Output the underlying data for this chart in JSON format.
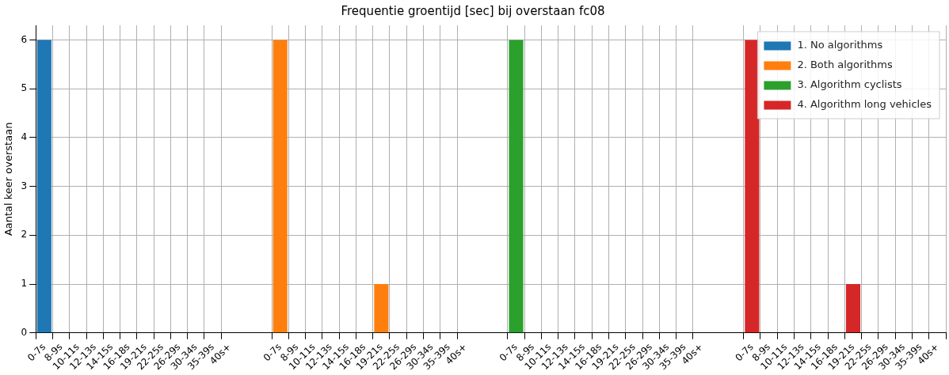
{
  "chart_data": {
    "type": "bar",
    "title": "Frequentie groentijd [sec] bij overstaan fc08",
    "ylabel": "Aantal keer overstaan",
    "categories": [
      "0-7s",
      "8-9s",
      "10-11s",
      "12-13s",
      "14-15s",
      "16-18s",
      "19-21s",
      "22-25s",
      "26-29s",
      "30-34s",
      "35-39s",
      "40s+",
      null,
      null,
      "0-7s",
      "8-9s",
      "10-11s",
      "12-13s",
      "14-15s",
      "16-18s",
      "19-21s",
      "22-25s",
      "26-29s",
      "30-34s",
      "35-39s",
      "40s+",
      null,
      null,
      "0-7s",
      "8-9s",
      "10-11s",
      "12-13s",
      "14-15s",
      "16-18s",
      "19-21s",
      "22-25s",
      "26-29s",
      "30-34s",
      "35-39s",
      "40s+",
      null,
      null,
      "0-7s",
      "8-9s",
      "10-11s",
      "12-13s",
      "14-15s",
      "16-18s",
      "19-21s",
      "22-25s",
      "26-29s",
      "30-34s",
      "35-39s",
      "40s+"
    ],
    "series": [
      {
        "name": "1. No algorithms",
        "color": "#1f77b4",
        "values": [
          6,
          0,
          0,
          0,
          0,
          0,
          0,
          0,
          0,
          0,
          0,
          0,
          null,
          null,
          null,
          null,
          null,
          null,
          null,
          null,
          null,
          null,
          null,
          null,
          null,
          null,
          null,
          null,
          null,
          null,
          null,
          null,
          null,
          null,
          null,
          null,
          null,
          null,
          null,
          null,
          null,
          null,
          null,
          null,
          null,
          null,
          null,
          null,
          null,
          null,
          null,
          null,
          null,
          null
        ]
      },
      {
        "name": "2. Both algorithms",
        "color": "#ff7f0e",
        "values": [
          null,
          null,
          null,
          null,
          null,
          null,
          null,
          null,
          null,
          null,
          null,
          null,
          null,
          null,
          6,
          0,
          0,
          0,
          0,
          0,
          1,
          0,
          0,
          0,
          0,
          0,
          null,
          null,
          null,
          null,
          null,
          null,
          null,
          null,
          null,
          null,
          null,
          null,
          null,
          null,
          null,
          null,
          null,
          null,
          null,
          null,
          null,
          null,
          null,
          null,
          null,
          null,
          null,
          null
        ]
      },
      {
        "name": "3. Algorithm cyclists",
        "color": "#2ca02c",
        "values": [
          null,
          null,
          null,
          null,
          null,
          null,
          null,
          null,
          null,
          null,
          null,
          null,
          null,
          null,
          null,
          null,
          null,
          null,
          null,
          null,
          null,
          null,
          null,
          null,
          null,
          null,
          null,
          null,
          6,
          0,
          0,
          0,
          0,
          0,
          0,
          0,
          0,
          0,
          0,
          0,
          null,
          null,
          null,
          null,
          null,
          null,
          null,
          null,
          null,
          null,
          null,
          null,
          null,
          null
        ]
      },
      {
        "name": "4. Algorithm long vehicles",
        "color": "#d62728",
        "values": [
          null,
          null,
          null,
          null,
          null,
          null,
          null,
          null,
          null,
          null,
          null,
          null,
          null,
          null,
          null,
          null,
          null,
          null,
          null,
          null,
          null,
          null,
          null,
          null,
          null,
          null,
          null,
          null,
          null,
          null,
          null,
          null,
          null,
          null,
          null,
          null,
          null,
          null,
          null,
          null,
          null,
          null,
          6,
          0,
          0,
          0,
          0,
          0,
          1,
          0,
          0,
          0,
          0,
          0
        ]
      }
    ],
    "ylim": [
      0,
      6.3
    ],
    "yticks": [
      0,
      1,
      2,
      3,
      4,
      5,
      6
    ],
    "grid": true,
    "legend": "top right"
  }
}
